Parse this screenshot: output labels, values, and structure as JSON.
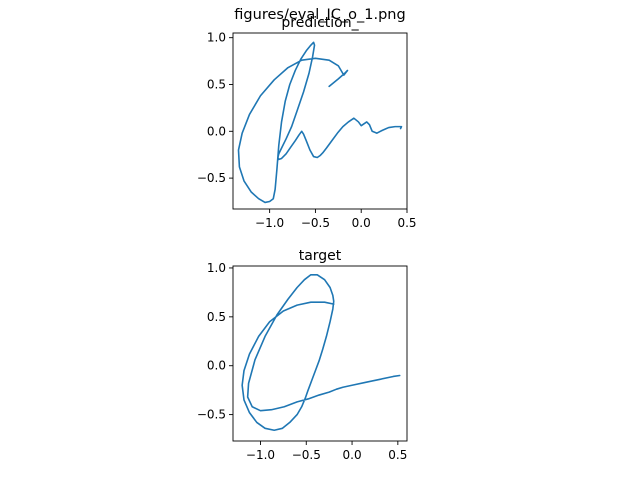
{
  "figure": {
    "suptitle": "figures/eval_IC_o_1.png"
  },
  "chart_data": [
    {
      "type": "line",
      "title": "prediction_",
      "xlim": [
        -1.4,
        0.5
      ],
      "ylim": [
        -0.83,
        1.05
      ],
      "xticks": [
        -1.0,
        -0.5,
        0.0,
        0.5
      ],
      "xtick_labels": [
        "−1.0",
        "−0.5",
        "0.0",
        "0.5"
      ],
      "yticks": [
        -0.5,
        0.0,
        0.5,
        1.0
      ],
      "ytick_labels": [
        "−0.5",
        "0.0",
        "0.5",
        "1.0"
      ],
      "grid": false,
      "color": "#1f77b4",
      "series": [
        {
          "x": [
            -0.35,
            -0.25,
            -0.18,
            -0.15,
            -0.19,
            -0.25,
            -0.35,
            -0.5,
            -0.65,
            -0.8,
            -0.95,
            -1.1,
            -1.22,
            -1.3,
            -1.34,
            -1.33,
            -1.28,
            -1.2,
            -1.12,
            -1.05,
            -1.0,
            -0.96,
            -0.94,
            -0.92,
            -0.9,
            -0.87,
            -0.83,
            -0.78,
            -0.72,
            -0.66,
            -0.6,
            -0.55,
            -0.52,
            -0.51,
            -0.53,
            -0.57,
            -0.63,
            -0.7,
            -0.76,
            -0.82,
            -0.87,
            -0.9,
            -0.91,
            -0.9,
            -0.87,
            -0.82,
            -0.77,
            -0.72,
            -0.68,
            -0.65,
            -0.63,
            -0.6,
            -0.56,
            -0.52,
            -0.48,
            -0.45,
            -0.42,
            -0.38,
            -0.32,
            -0.26,
            -0.2,
            -0.14,
            -0.08,
            -0.03,
            0.0,
            0.03,
            0.06,
            0.09,
            0.12,
            0.17,
            0.23,
            0.3,
            0.37,
            0.42,
            0.44,
            0.43
          ],
          "y": [
            0.48,
            0.56,
            0.62,
            0.65,
            0.6,
            0.7,
            0.76,
            0.78,
            0.76,
            0.68,
            0.55,
            0.38,
            0.18,
            -0.02,
            -0.2,
            -0.38,
            -0.53,
            -0.65,
            -0.72,
            -0.76,
            -0.75,
            -0.72,
            -0.62,
            -0.4,
            -0.15,
            0.1,
            0.32,
            0.5,
            0.65,
            0.77,
            0.86,
            0.92,
            0.95,
            0.92,
            0.8,
            0.62,
            0.42,
            0.22,
            0.05,
            -0.08,
            -0.18,
            -0.24,
            -0.28,
            -0.3,
            -0.29,
            -0.24,
            -0.17,
            -0.1,
            -0.04,
            0.0,
            -0.03,
            -0.1,
            -0.2,
            -0.27,
            -0.28,
            -0.26,
            -0.23,
            -0.18,
            -0.1,
            -0.02,
            0.05,
            0.1,
            0.14,
            0.1,
            0.06,
            0.08,
            0.1,
            0.07,
            0.0,
            -0.02,
            0.01,
            0.04,
            0.05,
            0.05,
            0.05,
            0.03
          ]
        }
      ]
    },
    {
      "type": "line",
      "title": "target",
      "xlim": [
        -1.3,
        0.6
      ],
      "ylim": [
        -0.77,
        1.02
      ],
      "xticks": [
        -1.0,
        -0.5,
        0.0,
        0.5
      ],
      "xtick_labels": [
        "−1.0",
        "−0.5",
        "0.0",
        "0.5"
      ],
      "yticks": [
        -0.5,
        0.0,
        0.5,
        1.0
      ],
      "ytick_labels": [
        "−0.5",
        "0.0",
        "0.5",
        "1.0"
      ],
      "grid": false,
      "color": "#1f77b4",
      "series": [
        {
          "x": [
            -0.2,
            -0.3,
            -0.45,
            -0.6,
            -0.75,
            -0.9,
            -1.02,
            -1.12,
            -1.18,
            -1.2,
            -1.18,
            -1.12,
            -1.04,
            -0.95,
            -0.85,
            -0.76,
            -0.68,
            -0.6,
            -0.55,
            -0.51,
            -0.48,
            -0.44,
            -0.4,
            -0.36,
            -0.32,
            -0.28,
            -0.24,
            -0.21,
            -0.2,
            -0.21,
            -0.24,
            -0.3,
            -0.38,
            -0.45,
            -0.52,
            -0.6,
            -0.7,
            -0.82,
            -0.95,
            -1.06,
            -1.13,
            -1.14,
            -1.09,
            -1.0,
            -0.88,
            -0.74,
            -0.6,
            -0.48,
            -0.36,
            -0.25,
            -0.17,
            -0.1,
            0.0,
            0.15,
            0.3,
            0.45,
            0.52
          ],
          "y": [
            0.63,
            0.65,
            0.65,
            0.62,
            0.56,
            0.45,
            0.3,
            0.12,
            -0.05,
            -0.2,
            -0.35,
            -0.48,
            -0.58,
            -0.64,
            -0.66,
            -0.64,
            -0.58,
            -0.5,
            -0.42,
            -0.33,
            -0.25,
            -0.15,
            -0.05,
            0.05,
            0.17,
            0.3,
            0.45,
            0.58,
            0.66,
            0.72,
            0.8,
            0.88,
            0.93,
            0.93,
            0.88,
            0.8,
            0.68,
            0.52,
            0.3,
            0.06,
            -0.18,
            -0.32,
            -0.42,
            -0.46,
            -0.45,
            -0.42,
            -0.37,
            -0.34,
            -0.3,
            -0.27,
            -0.24,
            -0.22,
            -0.2,
            -0.17,
            -0.14,
            -0.11,
            -0.1
          ]
        }
      ]
    }
  ]
}
